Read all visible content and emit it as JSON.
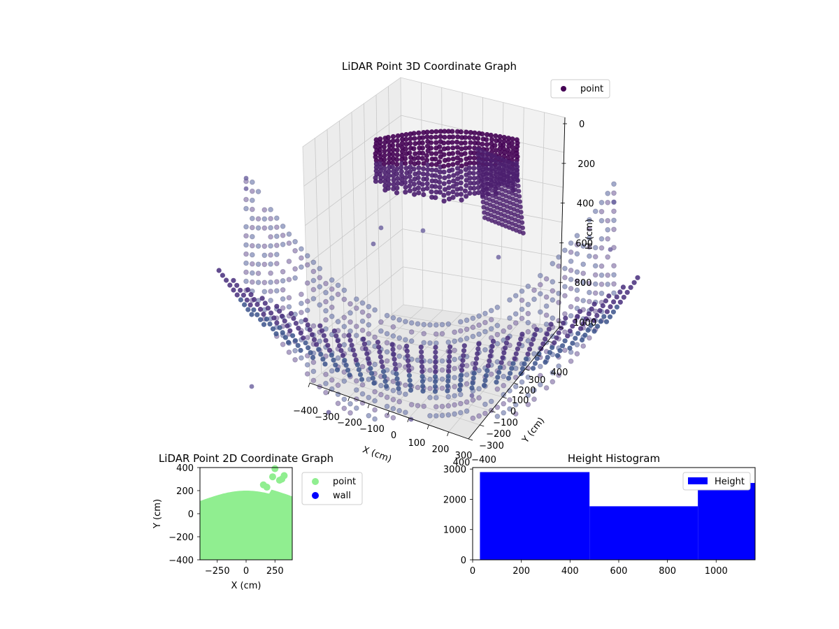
{
  "chart_data": [
    {
      "type": "scatter",
      "dimension": "3d",
      "title": "LiDAR Point 3D Coordinate Graph",
      "xlabel": "X (cm)",
      "ylabel": "Y (cm)",
      "zlabel": "H (cm)",
      "x_ticks": [
        "−400",
        "−300",
        "−200",
        "−100",
        "0",
        "100",
        "200",
        "300",
        "400"
      ],
      "y_ticks": [
        "−400",
        "−300",
        "−200",
        "−100",
        "0",
        "100",
        "200",
        "300",
        "400"
      ],
      "z_ticks": [
        "0",
        "200",
        "400",
        "600",
        "800",
        "1000"
      ],
      "xlim": [
        -400,
        400
      ],
      "ylim": [
        -400,
        400
      ],
      "zlim": [
        1000,
        0
      ],
      "z_inverted": true,
      "colormap": "viridis",
      "legend": [
        {
          "label": "point",
          "color": "#440154"
        }
      ],
      "legend_position": "upper-right",
      "grid": true,
      "pane_color": "#f2f2f2",
      "series": [
        {
          "name": "point",
          "description": "bowl-shaped floor surface of scan rings sweeping left to right (high H) plus an elevated dense cluster near the back wall (low H)",
          "cluster_ceiling": {
            "x_range": [
              -350,
              300
            ],
            "y_range": [
              200,
              400
            ],
            "h_range": [
              0,
              300
            ]
          },
          "floor_rings": {
            "x_range": [
              -400,
              400
            ],
            "y_range": [
              -400,
              400
            ],
            "h_range": [
              900,
              1000
            ]
          }
        }
      ]
    },
    {
      "type": "scatter",
      "title": "LiDAR Point 2D Coordinate Graph",
      "xlabel": "X (cm)",
      "ylabel": "Y (cm)",
      "x_ticks": [
        "−250",
        "0",
        "250"
      ],
      "y_ticks": [
        "400",
        "200",
        "0",
        "−200",
        "−400"
      ],
      "xlim": [
        -400,
        400
      ],
      "ylim": [
        -400,
        400
      ],
      "legend": [
        {
          "label": "point",
          "color": "#90ee90"
        },
        {
          "label": "wall",
          "color": "#0000ff"
        }
      ],
      "legend_position": "outside-right",
      "series": [
        {
          "name": "point",
          "color": "#90ee90",
          "description": "dense filled region covering y from −400 up to ~250 across the full x range"
        },
        {
          "name": "wall",
          "color": "#0000ff",
          "points": []
        }
      ]
    },
    {
      "type": "bar",
      "subtype": "histogram",
      "title": "Height Histogram",
      "x_ticks": [
        "0",
        "200",
        "400",
        "600",
        "800",
        "1000"
      ],
      "y_ticks": [
        "0",
        "1000",
        "2000",
        "3000"
      ],
      "xlim": [
        0,
        1160
      ],
      "ylim": [
        0,
        3050
      ],
      "bins": [
        {
          "start": 30,
          "end": 480,
          "count": 2900
        },
        {
          "start": 480,
          "end": 925,
          "count": 1770
        },
        {
          "start": 925,
          "end": 1160,
          "count": 2540
        }
      ],
      "color": "#0000ff",
      "legend": [
        {
          "label": "Height",
          "color": "#0000ff"
        }
      ],
      "legend_position": "upper-right"
    }
  ]
}
